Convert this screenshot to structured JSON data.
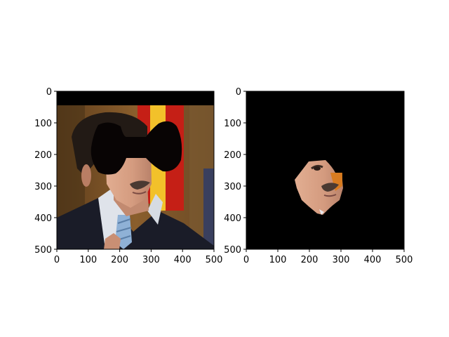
{
  "figure": {
    "panels": [
      {
        "id": "left",
        "content": "photo of a man in a suit and striped tie in front of a flag; an irregular black mask covers the top band and the upper face",
        "xticks": [
          "0",
          "100",
          "200",
          "300",
          "400",
          "500"
        ],
        "yticks": [
          "0",
          "100",
          "200",
          "300",
          "400",
          "500"
        ]
      },
      {
        "id": "right",
        "content": "black background; only a segmented lower-face region (nose, mustache, mouth, chin) remains visible",
        "xticks": [
          "0",
          "100",
          "200",
          "300",
          "400",
          "500"
        ],
        "yticks": [
          "0",
          "100",
          "200",
          "300",
          "400",
          "500"
        ]
      }
    ],
    "colors": {
      "mask": "#000000",
      "suit": "#1a1c28",
      "shirt": "#dfe3ea",
      "tie": "#8fb1d6",
      "skin": "#d49b7f",
      "hair": "#221a15",
      "mustache": "#4a3a32",
      "flag_red": "#c51f16",
      "flag_yellow": "#f2c12a",
      "bg_brown": "#6e4a22"
    }
  }
}
